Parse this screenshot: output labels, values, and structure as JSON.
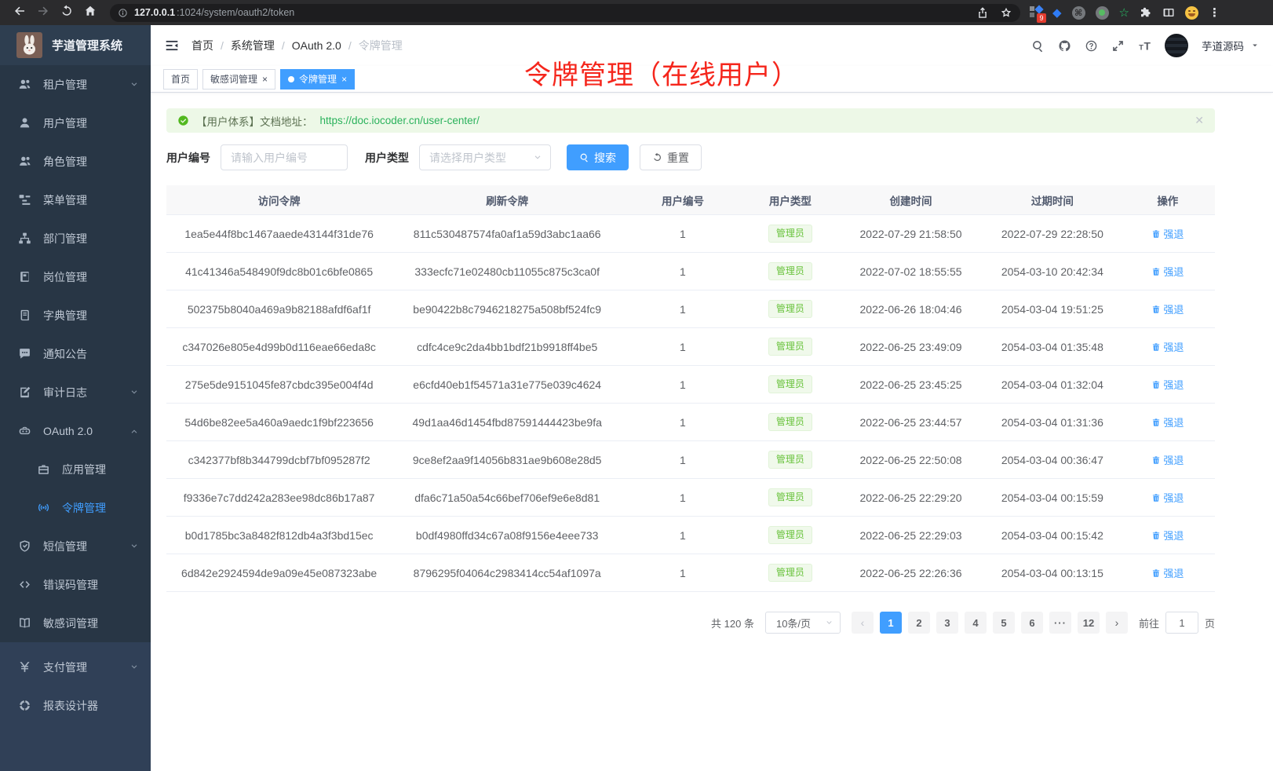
{
  "browser": {
    "url_host": "127.0.0.1",
    "url_rest": ":1024/system/oauth2/token",
    "extension_badge": "9"
  },
  "colors": {
    "primary": "#409eff",
    "success": "#67c23a",
    "annotation_red": "#f5261c",
    "sidebar_bg": "#283645"
  },
  "sidebar": {
    "logo_title": "芋道管理系统",
    "items": [
      {
        "key": "tenant",
        "icon": "users-icon",
        "label": "租户管理",
        "chevron": "down"
      },
      {
        "key": "user",
        "icon": "user-icon",
        "label": "用户管理"
      },
      {
        "key": "role",
        "icon": "role-icon",
        "label": "角色管理"
      },
      {
        "key": "menu",
        "icon": "menutree-icon",
        "label": "菜单管理"
      },
      {
        "key": "dept",
        "icon": "dept-icon",
        "label": "部门管理"
      },
      {
        "key": "post",
        "icon": "post-icon",
        "label": "岗位管理"
      },
      {
        "key": "dict",
        "icon": "dict-icon",
        "label": "字典管理"
      },
      {
        "key": "notice",
        "icon": "notice-icon",
        "label": "通知公告"
      },
      {
        "key": "audit",
        "icon": "audit-icon",
        "label": "审计日志",
        "chevron": "down"
      },
      {
        "key": "oauth2",
        "icon": "oauth-icon",
        "label": "OAuth 2.0",
        "chevron": "up"
      },
      {
        "key": "oauth2-app",
        "icon": "app-icon",
        "label": "应用管理",
        "sub": true
      },
      {
        "key": "oauth2-token",
        "icon": "token-icon",
        "label": "令牌管理",
        "sub": true,
        "active": true
      },
      {
        "key": "sms",
        "icon": "sms-icon",
        "label": "短信管理",
        "chevron": "down"
      },
      {
        "key": "errorcode",
        "icon": "errcode-icon",
        "label": "错误码管理"
      },
      {
        "key": "sensitive",
        "icon": "sensitive-icon",
        "label": "敏感词管理"
      },
      {
        "key": "pay",
        "icon": "pay-icon",
        "label": "支付管理",
        "chevron": "down",
        "section": "light"
      },
      {
        "key": "report",
        "icon": "report-icon",
        "label": "报表设计器",
        "section": "light"
      }
    ]
  },
  "header": {
    "breadcrumb": [
      "首页",
      "系统管理",
      "OAuth 2.0",
      "令牌管理"
    ],
    "right_icons": [
      "search-icon",
      "github-icon",
      "help-icon",
      "fullscreen-icon",
      "fontsize-icon"
    ],
    "username": "芋道源码"
  },
  "tabs": [
    {
      "key": "home",
      "label": "首页"
    },
    {
      "key": "sensitive",
      "label": "敏感词管理",
      "closable": true
    },
    {
      "key": "token",
      "label": "令牌管理",
      "closable": true,
      "active": true
    }
  ],
  "annotation": "令牌管理（在线用户）",
  "alert": {
    "prefix": "【用户体系】文档地址：",
    "link": "https://doc.iocoder.cn/user-center/"
  },
  "filters": {
    "user_id_label": "用户编号",
    "user_id_placeholder": "请输入用户编号",
    "user_type_label": "用户类型",
    "user_type_placeholder": "请选择用户类型",
    "search_label": "搜索",
    "reset_label": "重置"
  },
  "table": {
    "columns": [
      "访问令牌",
      "刷新令牌",
      "用户编号",
      "用户类型",
      "创建时间",
      "过期时间",
      "操作"
    ],
    "rows": [
      [
        "1ea5e44f8bc1467aaede43144f31de76",
        "811c530487574fa0af1a59d3abc1aa66",
        "1",
        "管理员",
        "2022-07-29 21:58:50",
        "2022-07-29 22:28:50",
        "强退"
      ],
      [
        "41c41346a548490f9dc8b01c6bfe0865",
        "333ecfc71e02480cb11055c875c3ca0f",
        "1",
        "管理员",
        "2022-07-02 18:55:55",
        "2054-03-10 20:42:34",
        "强退"
      ],
      [
        "502375b8040a469a9b82188afdf6af1f",
        "be90422b8c7946218275a508bf524fc9",
        "1",
        "管理员",
        "2022-06-26 18:04:46",
        "2054-03-04 19:51:25",
        "强退"
      ],
      [
        "c347026e805e4d99b0d116eae66eda8c",
        "cdfc4ce9c2da4bb1bdf21b9918ff4be5",
        "1",
        "管理员",
        "2022-06-25 23:49:09",
        "2054-03-04 01:35:48",
        "强退"
      ],
      [
        "275e5de9151045fe87cbdc395e004f4d",
        "e6cfd40eb1f54571a31e775e039c4624",
        "1",
        "管理员",
        "2022-06-25 23:45:25",
        "2054-03-04 01:32:04",
        "强退"
      ],
      [
        "54d6be82ee5a460a9aedc1f9bf223656",
        "49d1aa46d1454fbd87591444423be9fa",
        "1",
        "管理员",
        "2022-06-25 23:44:57",
        "2054-03-04 01:31:36",
        "强退"
      ],
      [
        "c342377bf8b344799dcbf7bf095287f2",
        "9ce8ef2aa9f14056b831ae9b608e28d5",
        "1",
        "管理员",
        "2022-06-25 22:50:08",
        "2054-03-04 00:36:47",
        "强退"
      ],
      [
        "f9336e7c7dd242a283ee98dc86b17a87",
        "dfa6c71a50a54c66bef706ef9e6e8d81",
        "1",
        "管理员",
        "2022-06-25 22:29:20",
        "2054-03-04 00:15:59",
        "强退"
      ],
      [
        "b0d1785bc3a8482f812db4a3f3bd15ec",
        "b0df4980ffd34c67a08f9156e4eee733",
        "1",
        "管理员",
        "2022-06-25 22:29:03",
        "2054-03-04 00:15:42",
        "强退"
      ],
      [
        "6d842e2924594de9a09e45e087323abe",
        "8796295f04064c2983414cc54af1097a",
        "1",
        "管理员",
        "2022-06-25 22:26:36",
        "2054-03-04 00:13:15",
        "强退"
      ]
    ]
  },
  "pagination": {
    "total_label": "共 120 条",
    "page_size_label": "10条/页",
    "pages": [
      {
        "label": "1",
        "active": true
      },
      {
        "label": "2"
      },
      {
        "label": "3"
      },
      {
        "label": "4"
      },
      {
        "label": "5"
      },
      {
        "label": "6"
      },
      {
        "label": "···",
        "ellipsis": true
      },
      {
        "label": "12"
      }
    ],
    "goto_label": "前往",
    "goto_value": "1",
    "goto_unit": "页"
  }
}
